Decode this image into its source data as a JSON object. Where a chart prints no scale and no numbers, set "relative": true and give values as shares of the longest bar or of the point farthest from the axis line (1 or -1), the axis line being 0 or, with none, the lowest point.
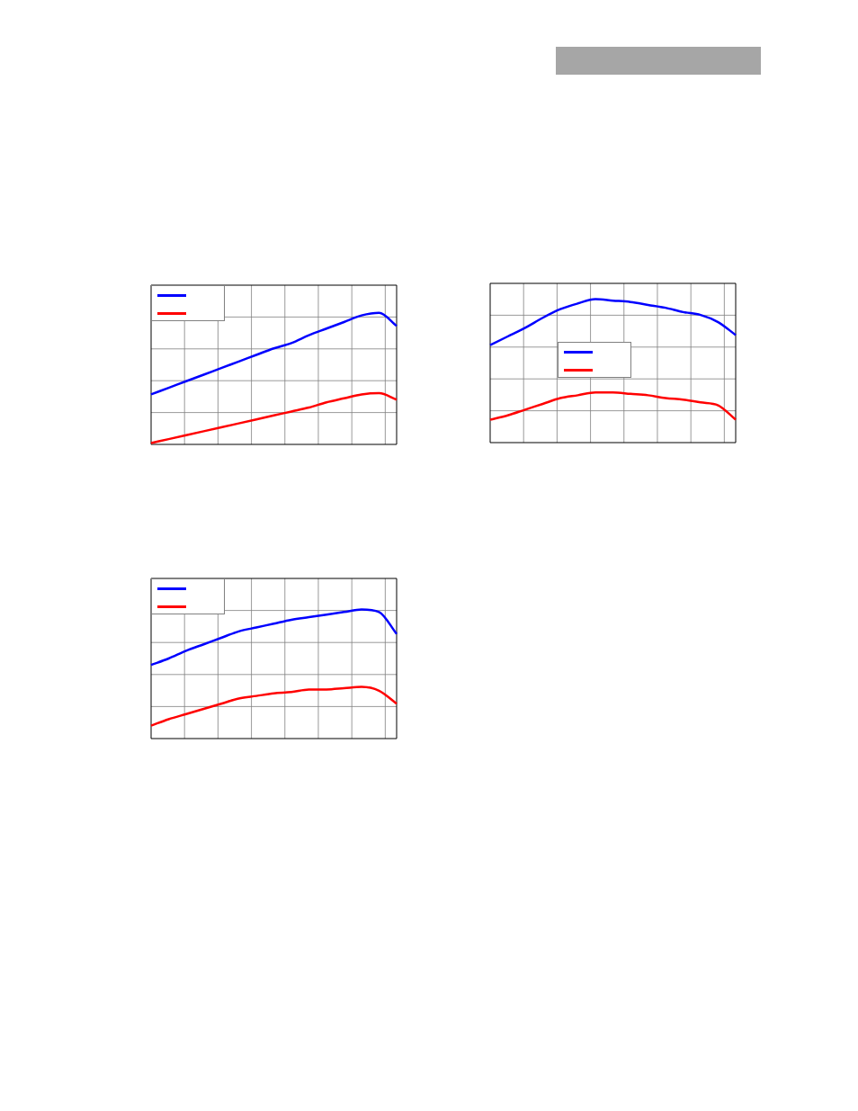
{
  "chart_data": [
    {
      "type": "line",
      "relative": true,
      "grid": true,
      "categories": [
        null,
        null,
        null,
        null,
        null,
        null,
        null,
        null,
        null,
        null,
        null,
        null,
        null,
        null,
        null
      ],
      "series": [
        {
          "color": "#0000ff",
          "values": [
            0.38,
            0.43,
            0.48,
            0.53,
            0.58,
            0.63,
            0.68,
            0.73,
            0.77,
            0.83,
            0.88,
            0.93,
            0.98,
            1,
            0.9
          ]
        },
        {
          "color": "#ff0000",
          "values": [
            0.01,
            0.04,
            0.07,
            0.1,
            0.13,
            0.16,
            0.19,
            0.22,
            0.25,
            0.28,
            0.32,
            0.35,
            0.38,
            0.39,
            0.34
          ]
        }
      ]
    },
    {
      "type": "line",
      "relative": true,
      "grid": true,
      "categories": [
        null,
        null,
        null,
        null,
        null,
        null,
        null,
        null,
        null,
        null,
        null,
        null,
        null,
        null,
        null
      ],
      "series": [
        {
          "color": "#0000ff",
          "values": [
            0.68,
            0.74,
            0.8,
            0.87,
            0.93,
            0.97,
            1,
            0.99,
            0.98,
            0.96,
            0.94,
            0.91,
            0.89,
            0.84,
            0.75
          ]
        },
        {
          "color": "#ff0000",
          "values": [
            0.16,
            0.19,
            0.23,
            0.27,
            0.31,
            0.33,
            0.35,
            0.35,
            0.34,
            0.33,
            0.31,
            0.3,
            0.28,
            0.26,
            0.16
          ]
        }
      ]
    },
    {
      "type": "line",
      "relative": true,
      "grid": true,
      "categories": [
        null,
        null,
        null,
        null,
        null,
        null,
        null,
        null,
        null,
        null,
        null,
        null,
        null,
        null,
        null
      ],
      "series": [
        {
          "color": "#0000ff",
          "values": [
            0.57,
            0.62,
            0.68,
            0.73,
            0.78,
            0.83,
            0.86,
            0.89,
            0.92,
            0.94,
            0.96,
            0.98,
            1,
            0.98,
            0.81
          ]
        },
        {
          "color": "#ff0000",
          "values": [
            0.1,
            0.15,
            0.19,
            0.23,
            0.27,
            0.31,
            0.33,
            0.35,
            0.36,
            0.38,
            0.38,
            0.39,
            0.4,
            0.37,
            0.27
          ]
        }
      ]
    }
  ]
}
